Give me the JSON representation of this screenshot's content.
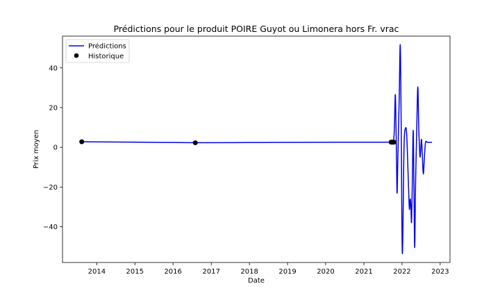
{
  "chart_data": {
    "type": "line",
    "title": "Prédictions pour le produit POIRE Guyot ou Limonera hors Fr. vrac",
    "xlabel": "Date",
    "ylabel": "Prix moyen",
    "x_type": "date",
    "xlim": [
      "2013-02-07",
      "2023-04-05"
    ],
    "ylim": [
      -58,
      56
    ],
    "x_ticks": [
      {
        "label": "2014",
        "value": "2014-01-01"
      },
      {
        "label": "2015",
        "value": "2015-01-01"
      },
      {
        "label": "2016",
        "value": "2016-01-01"
      },
      {
        "label": "2017",
        "value": "2017-01-01"
      },
      {
        "label": "2018",
        "value": "2018-01-01"
      },
      {
        "label": "2019",
        "value": "2019-01-01"
      },
      {
        "label": "2020",
        "value": "2020-01-01"
      },
      {
        "label": "2021",
        "value": "2021-01-01"
      },
      {
        "label": "2022",
        "value": "2022-01-01"
      },
      {
        "label": "2023",
        "value": "2023-01-01"
      }
    ],
    "y_ticks": [
      {
        "label": "40",
        "value": 40
      },
      {
        "label": "20",
        "value": 20
      },
      {
        "label": "0",
        "value": 0
      },
      {
        "label": "−20",
        "value": -20
      },
      {
        "label": "−40",
        "value": -40
      }
    ],
    "grid": false,
    "legend_position": "upper left",
    "colors": {
      "predictions": "#0000ee",
      "historique": "#000000",
      "background": "#ffffff"
    },
    "series": [
      {
        "name": "Prédictions",
        "style": "line",
        "points": [
          [
            "2013-08-10",
            2.8
          ],
          [
            "2015-02-01",
            2.6
          ],
          [
            "2016-08-01",
            2.3
          ],
          [
            "2018-01-01",
            2.4
          ],
          [
            "2019-06-01",
            2.5
          ],
          [
            "2021-01-01",
            2.6
          ],
          [
            "2021-09-18",
            2.6
          ],
          [
            "2021-10-10",
            2.6
          ],
          [
            "2021-10-20",
            10
          ],
          [
            "2021-10-28",
            26.5
          ],
          [
            "2021-11-03",
            15
          ],
          [
            "2021-11-10",
            -10
          ],
          [
            "2021-11-15",
            -23
          ],
          [
            "2021-11-22",
            -5
          ],
          [
            "2021-12-05",
            25
          ],
          [
            "2021-12-15",
            51.5
          ],
          [
            "2021-12-24",
            10
          ],
          [
            "2022-01-04",
            -53.5
          ],
          [
            "2022-01-20",
            0
          ],
          [
            "2022-02-03",
            9.5
          ],
          [
            "2022-02-15",
            6
          ],
          [
            "2022-03-01",
            -15
          ],
          [
            "2022-03-12",
            -31
          ],
          [
            "2022-03-20",
            -26
          ],
          [
            "2022-03-27",
            -30
          ],
          [
            "2022-04-02",
            -37.5
          ],
          [
            "2022-04-10",
            -15
          ],
          [
            "2022-04-18",
            8.5
          ],
          [
            "2022-04-25",
            -20
          ],
          [
            "2022-05-02",
            -50.5
          ],
          [
            "2022-05-10",
            -20
          ],
          [
            "2022-05-22",
            10
          ],
          [
            "2022-06-01",
            30.5
          ],
          [
            "2022-06-10",
            10
          ],
          [
            "2022-06-20",
            -3.5
          ],
          [
            "2022-06-25",
            -4
          ],
          [
            "2022-07-01",
            1
          ],
          [
            "2022-07-07",
            3.8
          ],
          [
            "2022-07-15",
            -5
          ],
          [
            "2022-07-24",
            -13.5
          ],
          [
            "2022-08-03",
            -5
          ],
          [
            "2022-08-14",
            2.5
          ],
          [
            "2022-09-01",
            2.5
          ],
          [
            "2022-10-15",
            2.5
          ]
        ]
      },
      {
        "name": "Historique",
        "style": "markers",
        "points": [
          [
            "2013-08-10",
            2.8
          ],
          [
            "2016-08-01",
            2.3
          ],
          [
            "2021-09-18",
            2.6
          ],
          [
            "2021-09-28",
            2.6
          ],
          [
            "2021-10-05",
            2.6
          ],
          [
            "2021-10-10",
            2.6
          ],
          [
            "2021-10-15",
            2.6
          ]
        ]
      }
    ]
  }
}
